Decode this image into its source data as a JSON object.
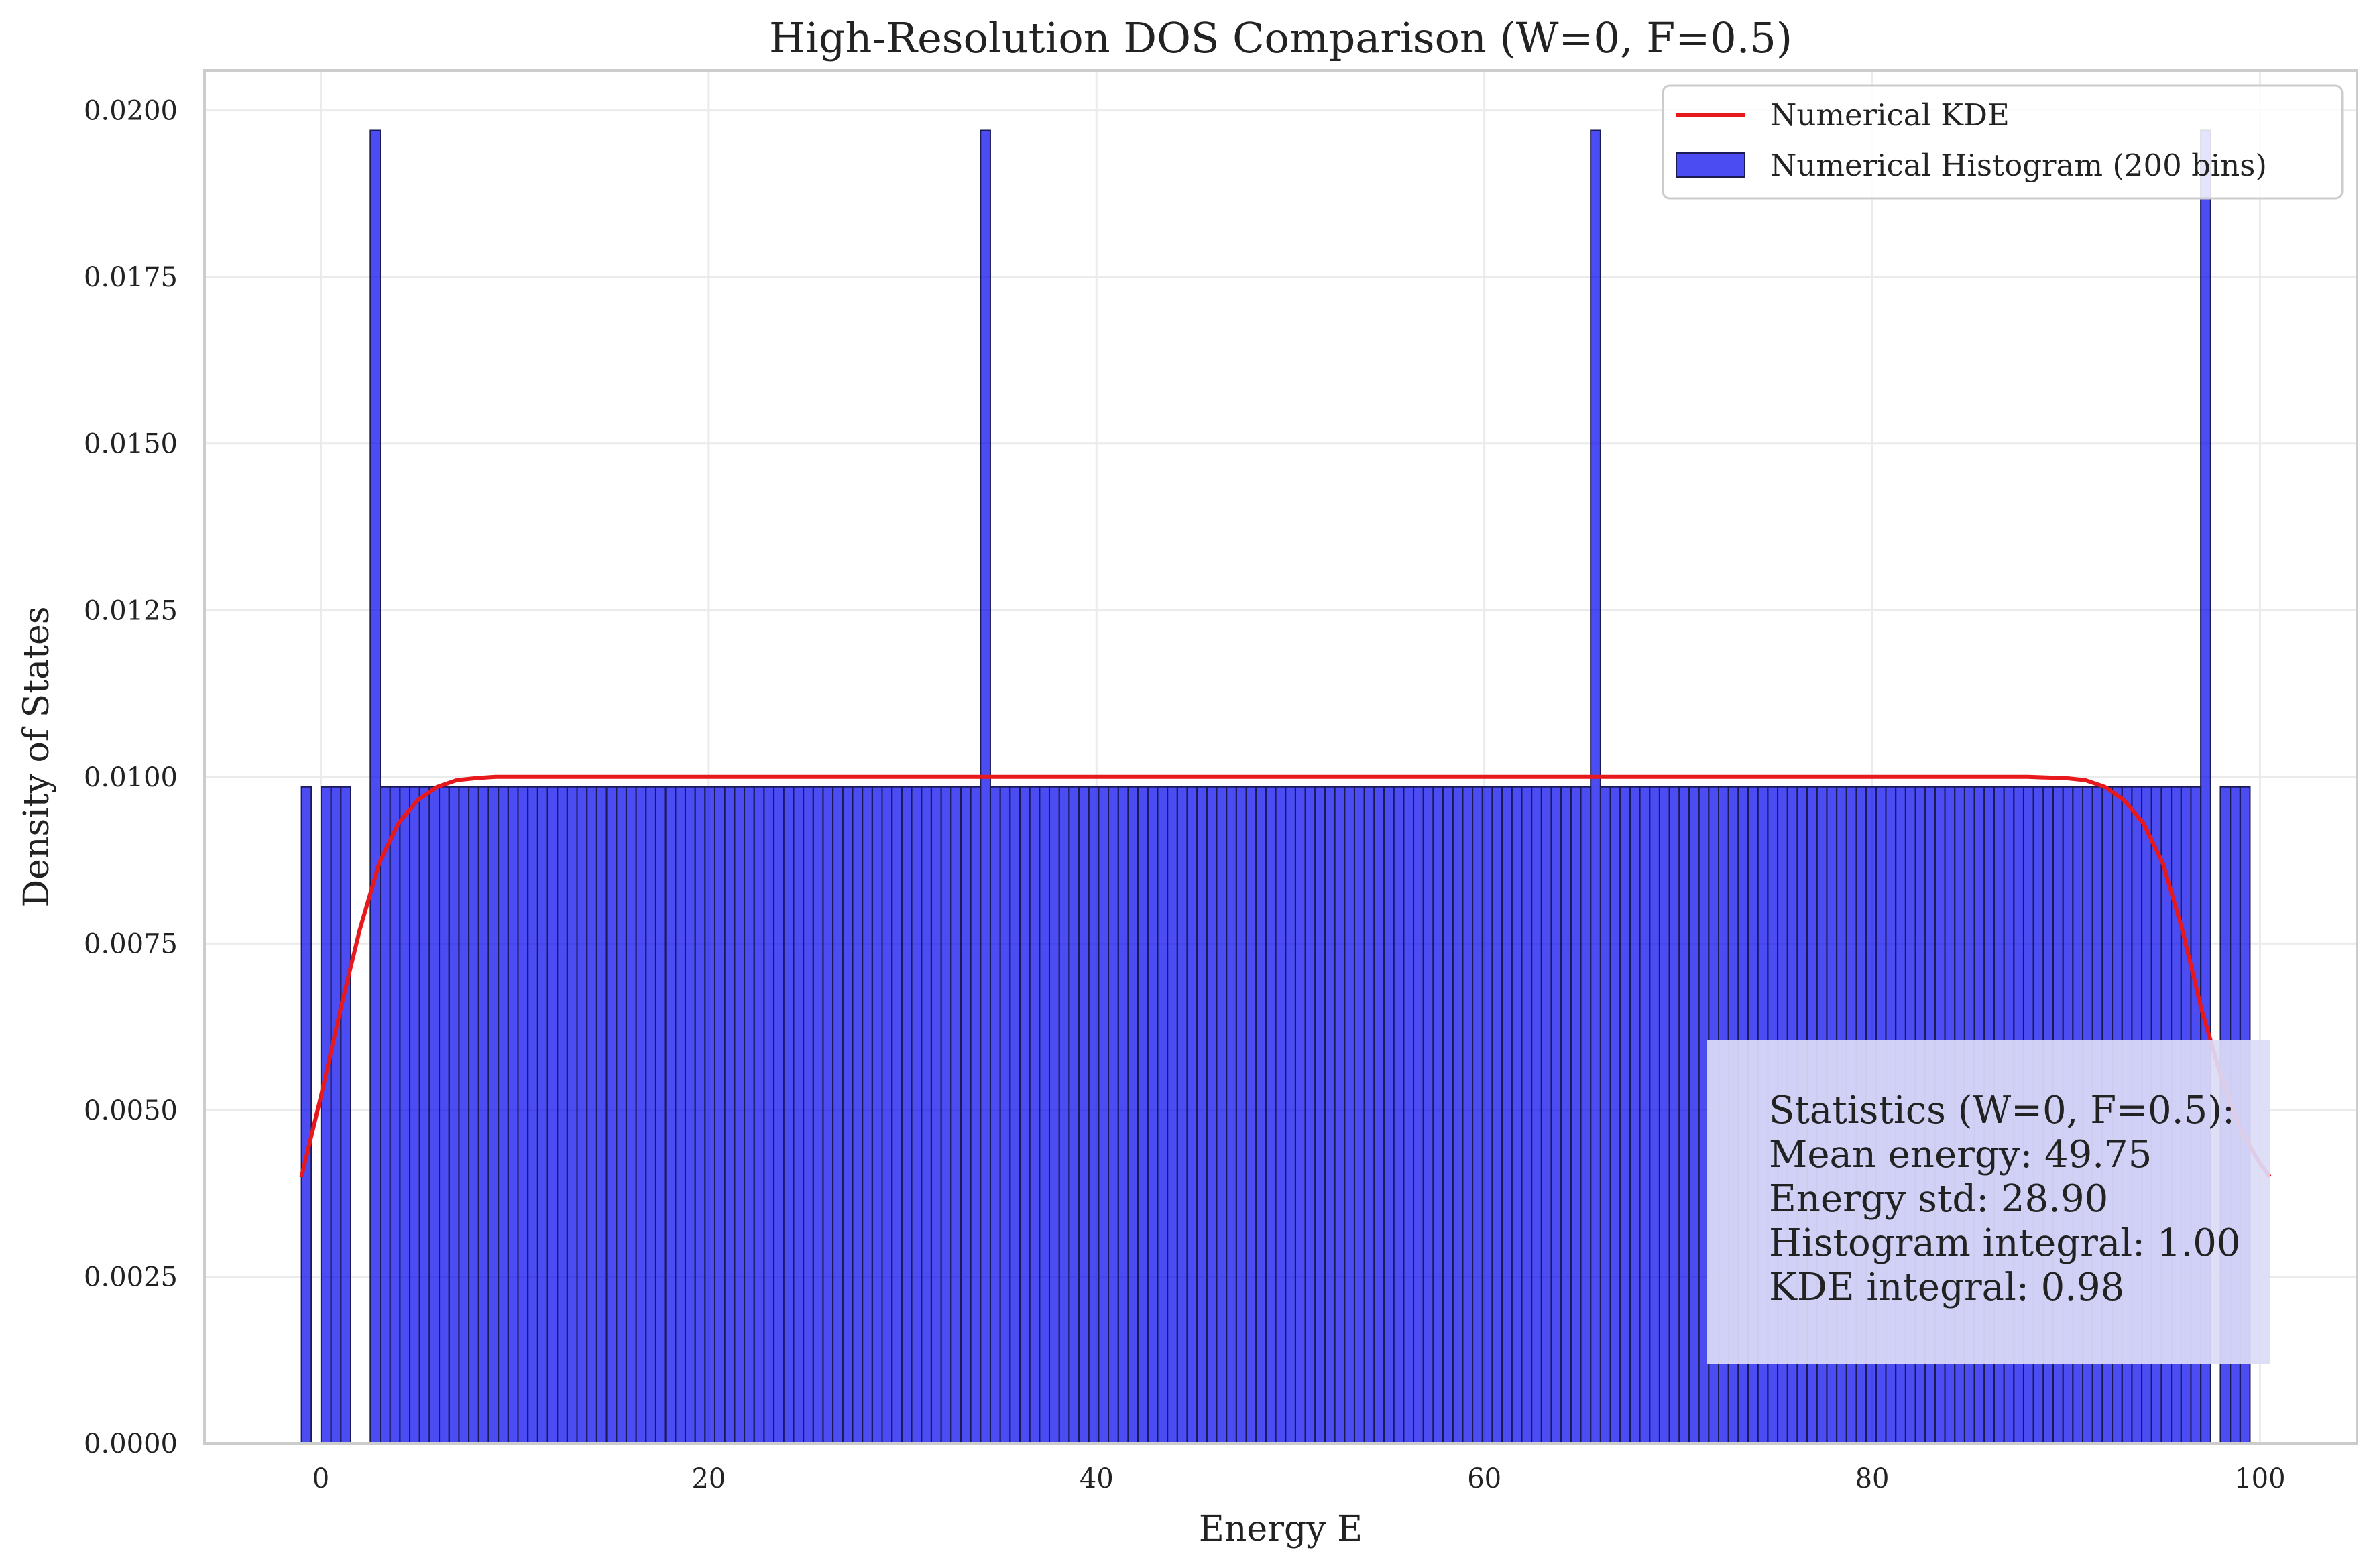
{
  "chart_data": {
    "type": "bar",
    "title": "High-Resolution DOS Comparison (W=0, F=0.5)",
    "xlabel": "Energy E",
    "ylabel": "Density of States",
    "xlim": [
      -6,
      105
    ],
    "ylim": [
      0,
      0.0206
    ],
    "x_ticks": [
      0,
      20,
      40,
      60,
      80,
      100
    ],
    "x_tick_labels": [
      "0",
      "20",
      "40",
      "60",
      "80",
      "100"
    ],
    "y_ticks": [
      0,
      0.0025,
      0.005,
      0.0075,
      0.01,
      0.0125,
      0.015,
      0.0175,
      0.02
    ],
    "y_tick_labels": [
      "0.0000",
      "0.0025",
      "0.0050",
      "0.0075",
      "0.0100",
      "0.0125",
      "0.0150",
      "0.0175",
      "0.0200"
    ],
    "grid": true,
    "legend_position": "top-right",
    "histogram": {
      "name": "Numerical Histogram (200 bins)",
      "color": "#0000ee",
      "edge_color": "#1a1a55",
      "bins": 200,
      "range": [
        -1.0,
        100.5
      ],
      "base_value": 0.00985,
      "spike_value": 0.0197,
      "spike_bins": [
        7,
        69,
        131,
        193
      ],
      "empty_bins": [
        1,
        5,
        6,
        194,
        198,
        199
      ]
    },
    "kde": {
      "name": "Numerical KDE",
      "color": "#e8191c",
      "x": [
        -1,
        0,
        1,
        2,
        3,
        4,
        5,
        6,
        7,
        8,
        9,
        10,
        12,
        20,
        40,
        60,
        80,
        88,
        90,
        91,
        92,
        93,
        94,
        95,
        96,
        97,
        98,
        99,
        100,
        100.5
      ],
      "y": [
        0.004,
        0.0052,
        0.0065,
        0.0077,
        0.0087,
        0.0093,
        0.00965,
        0.00985,
        0.00995,
        0.00998,
        0.01,
        0.01,
        0.01,
        0.01,
        0.01,
        0.01,
        0.01,
        0.01,
        0.00998,
        0.00995,
        0.00985,
        0.00965,
        0.0093,
        0.0087,
        0.0077,
        0.0065,
        0.0055,
        0.0047,
        0.0042,
        0.004
      ]
    },
    "stats_box": {
      "lines": [
        "Statistics (W=0, F=0.5):",
        "Mean energy: 49.75",
        "Energy std: 28.90",
        "Histogram integral: 1.00",
        "KDE integral: 0.98"
      ],
      "background": "#dcdcf6"
    }
  }
}
